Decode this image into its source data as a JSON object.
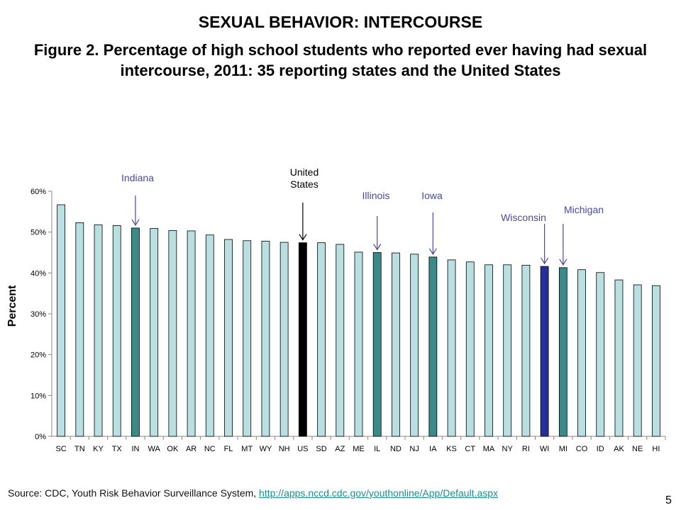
{
  "page": {
    "heading": "SEXUAL BEHAVIOR: INTERCOURSE",
    "figure_title": "Figure 2. Percentage of high school students who reported ever having had sexual intercourse, 2011: 35 reporting states and the United States",
    "source_prefix": "Source: CDC, Youth Risk Behavior Surveillance System, ",
    "source_link": "http://apps.nccd.cdc.gov/youthonline/App/Default.aspx",
    "page_number": "5"
  },
  "colors": {
    "default_bar": "#b9dfe0",
    "highlight_state": "#3a8a8a",
    "us_bar": "#000000",
    "wisconsin_bar": "#26309a",
    "annotation_text": "#4a4a9a",
    "us_annotation_text": "#000000"
  },
  "chart_data": {
    "type": "bar",
    "title": "",
    "xlabel": "",
    "ylabel": "Percent",
    "ylim": [
      0,
      60
    ],
    "yticks": [
      0,
      10,
      20,
      30,
      40,
      50,
      60
    ],
    "ytick_labels": [
      "0%",
      "10%",
      "20%",
      "30%",
      "40%",
      "50%",
      "60%"
    ],
    "grid": false,
    "categories": [
      "SC",
      "TN",
      "KY",
      "TX",
      "IN",
      "WA",
      "OK",
      "AR",
      "NC",
      "FL",
      "MT",
      "WY",
      "NH",
      "US",
      "SD",
      "AZ",
      "ME",
      "IL",
      "ND",
      "NJ",
      "IA",
      "KS",
      "CT",
      "MA",
      "NY",
      "RI",
      "WI",
      "MI",
      "CO",
      "ID",
      "AK",
      "NE",
      "HI"
    ],
    "values": [
      56.7,
      52.3,
      51.8,
      51.6,
      51.0,
      50.9,
      50.4,
      50.3,
      49.3,
      48.2,
      47.9,
      47.8,
      47.5,
      47.4,
      47.4,
      47.0,
      45.1,
      45.0,
      44.9,
      44.6,
      43.9,
      43.2,
      42.7,
      42.0,
      42.0,
      41.9,
      41.6,
      41.3,
      40.8,
      40.1,
      38.3,
      37.1,
      36.9
    ],
    "bar_colors": [
      "#b9dfe0",
      "#b9dfe0",
      "#b9dfe0",
      "#b9dfe0",
      "#3a8a8a",
      "#b9dfe0",
      "#b9dfe0",
      "#b9dfe0",
      "#b9dfe0",
      "#b9dfe0",
      "#b9dfe0",
      "#b9dfe0",
      "#b9dfe0",
      "#000000",
      "#b9dfe0",
      "#b9dfe0",
      "#b9dfe0",
      "#3a8a8a",
      "#b9dfe0",
      "#b9dfe0",
      "#3a8a8a",
      "#b9dfe0",
      "#b9dfe0",
      "#b9dfe0",
      "#b9dfe0",
      "#b9dfe0",
      "#26309a",
      "#3a8a8a",
      "#b9dfe0",
      "#b9dfe0",
      "#b9dfe0",
      "#b9dfe0",
      "#b9dfe0"
    ],
    "annotations": [
      {
        "category": "IN",
        "lines": [
          "Indiana"
        ]
      },
      {
        "category": "US",
        "lines": [
          "United",
          "States"
        ]
      },
      {
        "category": "IL",
        "lines": [
          "Illinois"
        ]
      },
      {
        "category": "IA",
        "lines": [
          "Iowa"
        ]
      },
      {
        "category": "WI",
        "lines": [
          "Wisconsin"
        ]
      },
      {
        "category": "MI",
        "lines": [
          "Michigan"
        ]
      }
    ]
  }
}
